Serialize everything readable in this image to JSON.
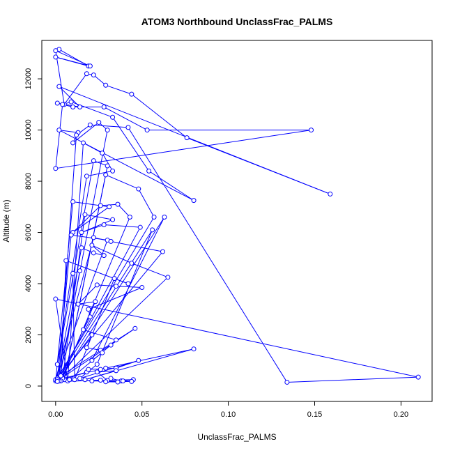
{
  "chart_data": {
    "type": "line",
    "title": "ATOM3 Northbound UnclassFrac_PALMS",
    "xlabel": "UnclassFrac_PALMS",
    "ylabel": "Altitude (m)",
    "xlim": [
      -0.008,
      0.218
    ],
    "ylim": [
      -600,
      13500
    ],
    "x_ticks": [
      0.0,
      0.05,
      0.1,
      0.15,
      0.2
    ],
    "x_tick_labels": [
      "0.00",
      "0.05",
      "0.10",
      "0.15",
      "0.20"
    ],
    "y_ticks": [
      0,
      2000,
      4000,
      6000,
      8000,
      10000,
      12000
    ],
    "y_tick_labels": [
      "0",
      "2000",
      "4000",
      "6000",
      "8000",
      "10000",
      "12000"
    ],
    "grid": false,
    "legend": "none",
    "marker": "open-circle",
    "color": "#0000ff",
    "series": [
      {
        "x": [
          0.002,
          0.019,
          0.0,
          0.02,
          0.0,
          0.005,
          0.018,
          0.022,
          0.029,
          0.044,
          0.076,
          0.159,
          0.002,
          0.014,
          0.001,
          0.01,
          0.028,
          0.053,
          0.148,
          0.0,
          0.004,
          0.009,
          0.033,
          0.054,
          0.08,
          0.002,
          0.013,
          0.01,
          0.025,
          0.03,
          0.002,
          0.012,
          0.02,
          0.042,
          0.134,
          0.21,
          0.0,
          0.007,
          0.016,
          0.027,
          0.033,
          0.018,
          0.001,
          0.022,
          0.03,
          0.005,
          0.029,
          0.048,
          0.057,
          0.0,
          0.01,
          0.031,
          0.01,
          0.026,
          0.036,
          0.043,
          0.004,
          0.017,
          0.033,
          0.015,
          0.028,
          0.049,
          0.001,
          0.009,
          0.03,
          0.0,
          0.022,
          0.032,
          0.062,
          0.001,
          0.015,
          0.022,
          0.028,
          0.021,
          0.044,
          0.065,
          0.002,
          0.014,
          0.01,
          0.011,
          0.034,
          0.042,
          0.006,
          0.003,
          0.023,
          0.013,
          0.024,
          0.035,
          0.05,
          0.019,
          0.02,
          0.016,
          0.035,
          0.032,
          0.008,
          0.003,
          0.046,
          0.001,
          0.021,
          0.018,
          0.026,
          0.027,
          0.021,
          0.063,
          0.002,
          0.018,
          0.019,
          0.035,
          0.048,
          0.014,
          0.024,
          0.056,
          0.001,
          0.026,
          0.029,
          0.08,
          0.017,
          0.035,
          0.024,
          0.03,
          0.032,
          0.038,
          0.039,
          0.045,
          0.001,
          0.026,
          0.021,
          0.044,
          0.029,
          0.036
        ],
        "y": [
          13150,
          12500,
          12850,
          12500,
          13100,
          11000,
          12200,
          12150,
          11750,
          11400,
          9700,
          7500,
          11700,
          10900,
          11050,
          10900,
          10900,
          10000,
          10000,
          8500,
          11000,
          11100,
          10500,
          8400,
          7250,
          10000,
          9900,
          9500,
          10300,
          10000,
          300,
          9800,
          10200,
          10100,
          150,
          350,
          3400,
          200,
          9500,
          9100,
          8400,
          8200,
          850,
          8800,
          8600,
          250,
          8250,
          7700,
          6600,
          200,
          7200,
          7000,
          6000,
          7050,
          7100,
          6600,
          300,
          6700,
          6500,
          6000,
          6300,
          6200,
          200,
          5900,
          5700,
          250,
          5800,
          5650,
          5250,
          300,
          5400,
          5200,
          5100,
          5500,
          4800,
          4250,
          200,
          4500,
          4400,
          250,
          4200,
          4000,
          4900,
          200,
          3300,
          3200,
          3950,
          3900,
          3850,
          3000,
          2700,
          2200,
          1800,
          1600,
          250,
          400,
          2250,
          200,
          2000,
          1500,
          1400,
          1300,
          1000,
          6600,
          200,
          550,
          650,
          700,
          1000,
          300,
          850,
          6100,
          250,
          650,
          700,
          1450,
          250,
          600,
          550,
          220,
          300,
          200,
          200,
          250,
          180,
          230,
          200,
          180,
          170,
          160
        ]
      }
    ]
  }
}
